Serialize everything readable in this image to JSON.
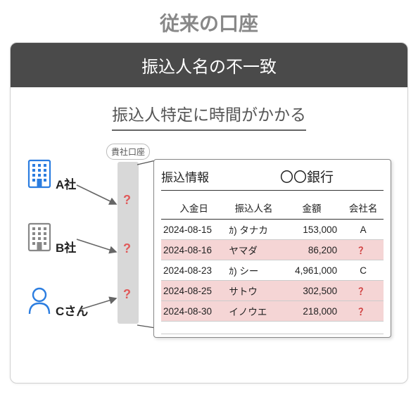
{
  "top_title": "従来の口座",
  "card": {
    "header": "振込人名の不一致",
    "subtitle": "振込人特定に時間がかかる"
  },
  "entities": [
    {
      "name": "A社",
      "icon": "building",
      "color": "#2b7de0"
    },
    {
      "name": "B社",
      "icon": "building",
      "color": "#888888"
    },
    {
      "name": "Cさん",
      "icon": "person",
      "color": "#2b7de0"
    }
  ],
  "account": {
    "label": "貴社口座",
    "bar_color": "#d8d8d8",
    "question_mark": "?",
    "question_color": "#e05a5a"
  },
  "panel": {
    "title": "振込情報",
    "bank": "〇〇銀行",
    "columns": [
      "入金日",
      "振込人名",
      "金額",
      "会社名"
    ],
    "rows": [
      {
        "date": "2024-08-15",
        "payer": "ｶ) タナカ",
        "amount": "153,000",
        "company": "A",
        "highlight": false
      },
      {
        "date": "2024-08-16",
        "payer": "ヤマダ",
        "amount": "86,200",
        "company": "？",
        "highlight": true
      },
      {
        "date": "2024-08-23",
        "payer": "ｶ) シー",
        "amount": "4,961,000",
        "company": "C",
        "highlight": false
      },
      {
        "date": "2024-08-25",
        "payer": "サトウ",
        "amount": "302,500",
        "company": "？",
        "highlight": true
      },
      {
        "date": "2024-08-30",
        "payer": "イノウエ",
        "amount": "218,000",
        "company": "？",
        "highlight": true
      }
    ],
    "highlight_color": "#f5d5d5"
  },
  "styling": {
    "header_bg": "#4a4a4a",
    "header_fg": "#ffffff",
    "title_color": "#888888",
    "subtitle_color": "#555555",
    "border_color": "#d0d0d0",
    "arrow_color": "#666666"
  }
}
